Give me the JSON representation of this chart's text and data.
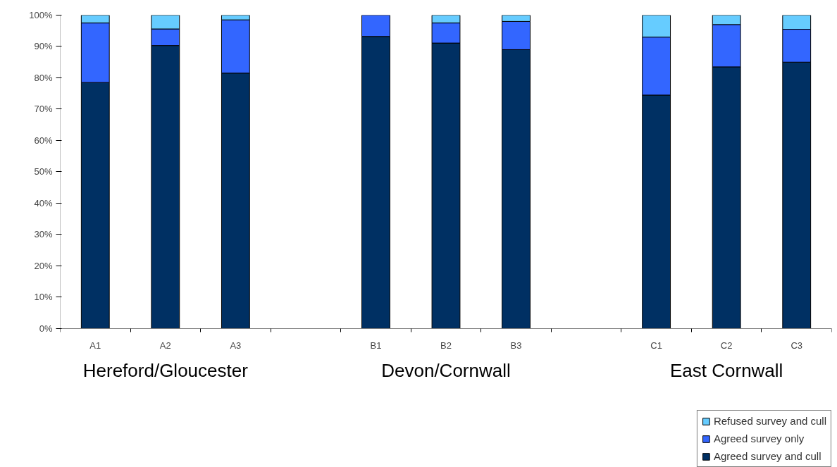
{
  "chart_data": {
    "type": "bar",
    "stacked": true,
    "categories": [
      "A1",
      "A2",
      "A3",
      null,
      "B1",
      "B2",
      "B3",
      null,
      "C1",
      "C2",
      "C3"
    ],
    "series": [
      {
        "name": "Agreed survey and cull",
        "color": "#003063",
        "values": [
          78.5,
          90.3,
          81.5,
          null,
          93.2,
          91.1,
          89,
          null,
          74.5,
          83.5,
          85
        ]
      },
      {
        "name": "Agreed survey only",
        "color": "#3366ff",
        "values": [
          19,
          5.3,
          17,
          null,
          6.8,
          6.4,
          9,
          null,
          18.5,
          13.5,
          10.5
        ]
      },
      {
        "name": "Refused survey and cull",
        "color": "#66ccff",
        "values": [
          2.5,
          4.4,
          1.5,
          null,
          null,
          2.5,
          2,
          null,
          7,
          3,
          4.5
        ]
      }
    ],
    "ylim": [
      0,
      100
    ],
    "yticks": [
      {
        "value": 0,
        "label": "0%"
      },
      {
        "value": 10,
        "label": "10%"
      },
      {
        "value": 20,
        "label": "20%"
      },
      {
        "value": 30,
        "label": "30%"
      },
      {
        "value": 40,
        "label": "40%"
      },
      {
        "value": 50,
        "label": "50%"
      },
      {
        "value": 60,
        "label": "60%"
      },
      {
        "value": 70,
        "label": "70%"
      },
      {
        "value": 80,
        "label": "80%"
      },
      {
        "value": 90,
        "label": "90%"
      },
      {
        "value": 100,
        "label": "100%"
      }
    ],
    "annotations": [
      "Hereford/Gloucester",
      "Devon/Cornwall",
      "East Cornwall"
    ],
    "grid": false,
    "legend": "bottom right"
  }
}
